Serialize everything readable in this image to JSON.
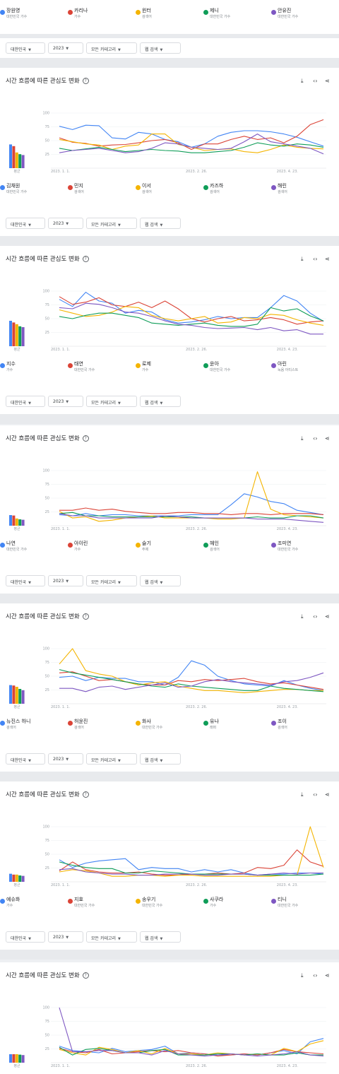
{
  "colors": [
    "#4285f4",
    "#db4437",
    "#f4b400",
    "#0f9d58",
    "#7e57c2"
  ],
  "filters": {
    "region": "대한민국",
    "year": "2023",
    "category": "모든 카테고리",
    "search_type": "웹 검색"
  },
  "section_title": "시간 흐름에 따른 관심도 변화",
  "help_icon": "question-circle-icon",
  "action_icons": [
    "download-icon",
    "embed-code-icon",
    "share-icon"
  ],
  "avg_label": "평균",
  "top_terms": [
    {
      "name": "장원영",
      "desc": "대한민국 가수"
    },
    {
      "name": "카리나",
      "desc": "가수"
    },
    {
      "name": "윈터",
      "desc": "검색어"
    },
    {
      "name": "제니",
      "desc": "대한민국 가수"
    },
    {
      "name": "안유진",
      "desc": "대한민국 가수"
    }
  ],
  "sections": [
    {
      "terms": [
        {
          "name": "김채원",
          "desc": "대한민국 가수"
        },
        {
          "name": "민지",
          "desc": "검색어"
        },
        {
          "name": "이서",
          "desc": "검색어"
        },
        {
          "name": "카즈하",
          "desc": "검색어"
        },
        {
          "name": "해린",
          "desc": "검색어"
        }
      ]
    },
    {
      "terms": [
        {
          "name": "지수",
          "desc": "가수"
        },
        {
          "name": "태연",
          "desc": "대한민국 가수"
        },
        {
          "name": "로제",
          "desc": "가수"
        },
        {
          "name": "윤아",
          "desc": "대한민국 가수"
        },
        {
          "name": "아린",
          "desc": "녹음 아티스트"
        }
      ]
    },
    {
      "terms": [
        {
          "name": "나연",
          "desc": "대한민국 가수"
        },
        {
          "name": "아이린",
          "desc": "가수"
        },
        {
          "name": "슬기",
          "desc": "주제"
        },
        {
          "name": "혜인",
          "desc": "검색어"
        },
        {
          "name": "조미연",
          "desc": "대한민국 가수"
        }
      ]
    },
    {
      "terms": [
        {
          "name": "뉴진스 하니",
          "desc": "검색어"
        },
        {
          "name": "허윤진",
          "desc": "검색어"
        },
        {
          "name": "화사",
          "desc": "대한민국 가수"
        },
        {
          "name": "유나",
          "desc": "래퍼"
        },
        {
          "name": "조이",
          "desc": "검색어"
        }
      ]
    },
    {
      "terms": [
        {
          "name": "예슈화",
          "desc": "가수"
        },
        {
          "name": "지효",
          "desc": "대한민국 가수"
        },
        {
          "name": "송우기",
          "desc": "대한민국 가수"
        },
        {
          "name": "사쿠라",
          "desc": "가수"
        },
        {
          "name": "티니",
          "desc": "대한민국 가수"
        }
      ]
    }
  ],
  "chart_data": [
    {
      "type": "line",
      "x_labels": [
        "2023. 1. 1.",
        "2023. 2. 26.",
        "2023. 4. 23."
      ],
      "y_ticks": [
        100,
        75,
        50,
        25
      ],
      "ylim": [
        0,
        100
      ],
      "averages": [
        56,
        52,
        37,
        33,
        31
      ],
      "series": [
        {
          "name": "장원영",
          "values": [
            76,
            70,
            78,
            77,
            55,
            53,
            65,
            62,
            52,
            48,
            38,
            44,
            58,
            65,
            68,
            68,
            66,
            62,
            56,
            48,
            40
          ]
        },
        {
          "name": "카리나",
          "values": [
            55,
            47,
            45,
            40,
            42,
            43,
            46,
            50,
            52,
            46,
            34,
            44,
            44,
            52,
            58,
            52,
            55,
            46,
            58,
            79,
            88
          ]
        },
        {
          "name": "윈터",
          "values": [
            52,
            48,
            44,
            42,
            34,
            40,
            42,
            62,
            62,
            43,
            38,
            32,
            34,
            35,
            30,
            28,
            34,
            42,
            38,
            36,
            35
          ]
        },
        {
          "name": "제니",
          "values": [
            36,
            32,
            35,
            38,
            34,
            30,
            32,
            34,
            32,
            31,
            28,
            28,
            30,
            32,
            38,
            46,
            42,
            40,
            44,
            42,
            38
          ]
        },
        {
          "name": "안유진",
          "values": [
            28,
            32,
            34,
            36,
            32,
            28,
            30,
            36,
            46,
            44,
            38,
            36,
            34,
            36,
            48,
            62,
            48,
            44,
            40,
            36,
            26
          ]
        }
      ]
    },
    {
      "type": "line",
      "x_labels": [
        "2023. 1. 1.",
        "2023. 2. 26.",
        "2023. 4. 23."
      ],
      "y_ticks": [
        100,
        75,
        50,
        25
      ],
      "ylim": [
        0,
        100
      ],
      "averages": [
        60,
        56,
        52,
        47,
        45
      ],
      "series": [
        {
          "name": "김채원",
          "values": [
            85,
            72,
            98,
            82,
            78,
            60,
            65,
            62,
            48,
            42,
            44,
            48,
            54,
            50,
            52,
            52,
            70,
            92,
            82,
            60,
            45
          ]
        },
        {
          "name": "민지",
          "values": [
            90,
            76,
            80,
            88,
            75,
            72,
            80,
            70,
            82,
            68,
            50,
            44,
            50,
            54,
            46,
            48,
            52,
            48,
            40,
            44,
            46
          ]
        },
        {
          "name": "이서",
          "values": [
            66,
            60,
            54,
            56,
            62,
            72,
            70,
            56,
            50,
            46,
            50,
            54,
            42,
            44,
            52,
            50,
            58,
            56,
            48,
            42,
            38
          ]
        },
        {
          "name": "카즈하",
          "values": [
            54,
            50,
            56,
            60,
            60,
            56,
            52,
            42,
            40,
            38,
            40,
            42,
            38,
            36,
            36,
            40,
            70,
            64,
            68,
            55,
            46
          ]
        },
        {
          "name": "해린",
          "values": [
            70,
            68,
            78,
            76,
            70,
            62,
            60,
            54,
            46,
            40,
            38,
            34,
            32,
            33,
            34,
            30,
            34,
            28,
            30,
            22,
            22
          ]
        }
      ]
    },
    {
      "type": "line",
      "x_labels": [
        "2023. 1. 1.",
        "2023. 2. 26.",
        "2023. 4. 23."
      ],
      "y_ticks": [
        100,
        75,
        50,
        25
      ],
      "ylim": [
        0,
        100
      ],
      "averages": [
        25,
        24,
        17,
        15,
        14
      ],
      "series": [
        {
          "name": "나연",
          "values": [
            20,
            18,
            22,
            18,
            20,
            20,
            18,
            18,
            18,
            18,
            20,
            20,
            20,
            38,
            58,
            52,
            44,
            40,
            28,
            24,
            20
          ]
        },
        {
          "name": "아이린",
          "values": [
            28,
            28,
            32,
            28,
            30,
            26,
            24,
            22,
            22,
            24,
            24,
            22,
            22,
            20,
            22,
            22,
            20,
            22,
            22,
            22,
            20
          ]
        },
        {
          "name": "슬기",
          "values": [
            26,
            14,
            16,
            8,
            10,
            14,
            16,
            18,
            14,
            14,
            14,
            14,
            12,
            12,
            14,
            98,
            30,
            20,
            18,
            16,
            14
          ]
        },
        {
          "name": "혜인",
          "values": [
            22,
            24,
            18,
            18,
            16,
            16,
            16,
            16,
            16,
            16,
            16,
            14,
            14,
            14,
            14,
            16,
            14,
            14,
            18,
            18,
            14
          ]
        },
        {
          "name": "조미연",
          "values": [
            22,
            18,
            18,
            14,
            14,
            14,
            14,
            14,
            18,
            16,
            14,
            14,
            14,
            14,
            14,
            12,
            12,
            12,
            10,
            8,
            6
          ]
        }
      ]
    },
    {
      "type": "line",
      "x_labels": [
        "2023. 1. 1.",
        "2023. 2. 26.",
        "2023. 4. 23."
      ],
      "y_ticks": [
        100,
        75,
        50,
        25
      ],
      "ylim": [
        0,
        100
      ],
      "averages": [
        44,
        43,
        40,
        35,
        32
      ],
      "series": [
        {
          "name": "뉴진스 하니",
          "values": [
            48,
            50,
            42,
            48,
            46,
            46,
            40,
            40,
            34,
            48,
            78,
            70,
            50,
            42,
            36,
            34,
            32,
            42,
            34,
            28,
            24
          ]
        },
        {
          "name": "허윤진",
          "values": [
            56,
            58,
            50,
            42,
            44,
            40,
            36,
            34,
            34,
            42,
            40,
            44,
            42,
            44,
            46,
            40,
            36,
            38,
            34,
            30,
            26
          ]
        },
        {
          "name": "화사",
          "values": [
            72,
            100,
            60,
            54,
            50,
            40,
            34,
            38,
            40,
            32,
            28,
            24,
            24,
            22,
            20,
            22,
            24,
            26,
            26,
            24,
            24
          ]
        },
        {
          "name": "유나",
          "values": [
            62,
            56,
            52,
            48,
            44,
            40,
            36,
            32,
            30,
            36,
            32,
            30,
            28,
            26,
            24,
            24,
            32,
            28,
            26,
            24,
            22
          ]
        },
        {
          "name": "조이",
          "values": [
            28,
            28,
            22,
            30,
            32,
            26,
            30,
            34,
            38,
            30,
            32,
            40,
            44,
            40,
            38,
            36,
            34,
            40,
            42,
            48,
            56
          ]
        }
      ]
    },
    {
      "type": "line",
      "x_labels": [
        "2023. 1. 1.",
        "2023. 2. 26.",
        "2023. 4. 23."
      ],
      "y_ticks": [
        100,
        75,
        50,
        25
      ],
      "ylim": [
        0,
        100
      ],
      "averages": [
        19,
        17,
        17,
        15,
        14
      ],
      "series": [
        {
          "name": "예슈화",
          "values": [
            40,
            26,
            34,
            38,
            40,
            42,
            22,
            26,
            24,
            24,
            18,
            22,
            18,
            22,
            16,
            12,
            14,
            14,
            16,
            16,
            14
          ]
        },
        {
          "name": "지효",
          "values": [
            20,
            36,
            22,
            18,
            16,
            16,
            18,
            14,
            12,
            12,
            14,
            14,
            16,
            14,
            16,
            26,
            24,
            30,
            58,
            36,
            28
          ]
        },
        {
          "name": "송우기",
          "values": [
            18,
            22,
            20,
            16,
            10,
            10,
            12,
            12,
            10,
            12,
            12,
            10,
            10,
            10,
            10,
            10,
            10,
            12,
            12,
            100,
            26
          ]
        },
        {
          "name": "사쿠라",
          "values": [
            36,
            30,
            26,
            24,
            24,
            16,
            16,
            20,
            18,
            16,
            14,
            14,
            14,
            14,
            14,
            12,
            12,
            12,
            12,
            12,
            14
          ]
        },
        {
          "name": "티니",
          "values": [
            22,
            24,
            18,
            16,
            14,
            14,
            12,
            12,
            14,
            14,
            14,
            12,
            12,
            14,
            14,
            12,
            14,
            16,
            14,
            16,
            16
          ]
        }
      ]
    },
    {
      "type": "line",
      "x_labels": [
        "2023. 1. 1.",
        "2023. 2. 26.",
        "2023. 4. 23."
      ],
      "y_ticks": [
        100,
        75,
        50,
        25
      ],
      "ylim": [
        0,
        100
      ],
      "averages": [
        20,
        20,
        20,
        19,
        18
      ],
      "series": [
        {
          "name": "장원영",
          "values": [
            30,
            22,
            20,
            18,
            26,
            20,
            22,
            24,
            30,
            16,
            18,
            16,
            14,
            14,
            16,
            14,
            18,
            22,
            16,
            38,
            44
          ]
        },
        {
          "name": "카리나",
          "values": [
            26,
            20,
            18,
            24,
            16,
            18,
            20,
            22,
            20,
            22,
            18,
            16,
            12,
            14,
            16,
            14,
            18,
            24,
            20,
            18,
            16
          ]
        },
        {
          "name": "윈터",
          "values": [
            24,
            18,
            14,
            28,
            24,
            18,
            22,
            16,
            26,
            16,
            16,
            14,
            18,
            16,
            14,
            16,
            14,
            26,
            20,
            34,
            40
          ]
        },
        {
          "name": "제니",
          "values": [
            28,
            14,
            24,
            26,
            22,
            18,
            18,
            22,
            24,
            14,
            14,
            14,
            16,
            16,
            14,
            16,
            14,
            14,
            18,
            14,
            14
          ]
        },
        {
          "name": "안유진",
          "values": [
            100,
            20,
            20,
            22,
            22,
            18,
            18,
            14,
            22,
            16,
            14,
            12,
            14,
            16,
            14,
            12,
            14,
            16,
            20,
            14,
            12
          ]
        }
      ]
    }
  ]
}
